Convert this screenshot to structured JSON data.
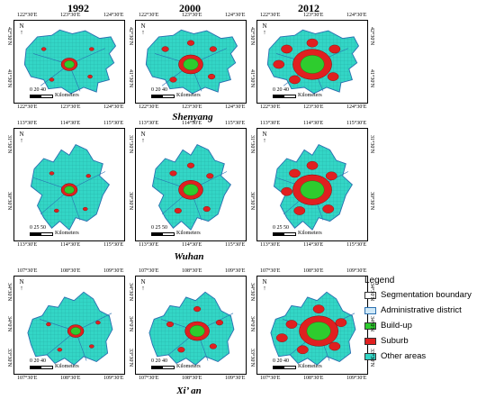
{
  "years": [
    "1992",
    "2000",
    "2012"
  ],
  "cities": [
    "Shenyang",
    "Wuhan",
    "Xi’ an"
  ],
  "scale_label": "Kilometers",
  "shenyang": {
    "top_ticks": [
      "122°30′E",
      "123°30′E",
      "124°30′E"
    ],
    "bottom_ticks": [
      "122°30′E",
      "123°30′E",
      "124°30′E"
    ],
    "left_ticks": [
      "42°30′N",
      "41°30′N"
    ],
    "scale_ticks": "0  20  40"
  },
  "wuhan": {
    "top_ticks": [
      "113°30′E",
      "114°30′E",
      "115°30′E"
    ],
    "bottom_ticks": [
      "113°30′E",
      "114°30′E",
      "115°30′E"
    ],
    "left_ticks": [
      "31°30′N",
      "30°30′N"
    ],
    "scale_ticks": "0  25  50"
  },
  "xian": {
    "top_ticks": [
      "107°30′E",
      "108°30′E",
      "109°30′E"
    ],
    "bottom_ticks": [
      "107°30′E",
      "108°30′E",
      "109°30′E"
    ],
    "left_ticks": [
      "34°30′N",
      "34°0′N",
      "33°30′N"
    ],
    "scale_ticks": "0  20  40"
  },
  "legend": {
    "title": "Legend",
    "items": [
      {
        "label": "Segmentation boundary",
        "color": "#ffffff"
      },
      {
        "label": "Administrative district",
        "color": "#cfe8f7"
      },
      {
        "label": "Build-up",
        "color": "#2ecc2e"
      },
      {
        "label": "Suburb",
        "color": "#e02020"
      },
      {
        "label": "Other areas",
        "color": "#33d6c6"
      }
    ]
  },
  "north_label": "N"
}
